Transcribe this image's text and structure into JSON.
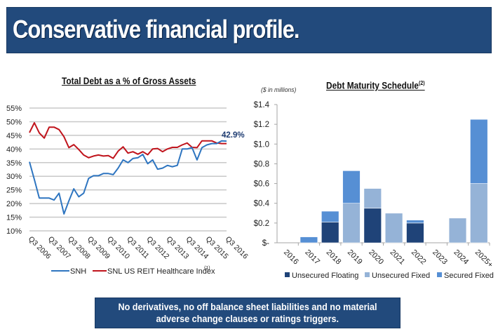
{
  "header": {
    "title": "Conservative financial profile."
  },
  "footer": {
    "line1": "No derivatives, no off balance sheet liabilities and no material",
    "line2": "adverse change clauses or ratings triggers."
  },
  "colors": {
    "brand": "#224a7c",
    "snh": "#2e75c0",
    "index": "#c0141c",
    "floating": "#1f4378",
    "unsecured_fixed": "#95b3d7",
    "secured_fixed": "#568fd4"
  },
  "chart_data": [
    {
      "type": "line",
      "title": "Total Debt as a % of Gross Assets",
      "xlabel": "",
      "ylabel": "",
      "ylim": [
        10,
        55
      ],
      "yticks": [
        "55%",
        "50%",
        "45%",
        "40%",
        "35%",
        "30%",
        "25%",
        "20%",
        "15%",
        "10%"
      ],
      "ytick_values": [
        55,
        50,
        45,
        40,
        35,
        30,
        25,
        20,
        15,
        10
      ],
      "xtick_labels": [
        "Q3 2006",
        "Q3 2007",
        "Q3 2008",
        "Q3 2009",
        "Q3 2010",
        "Q3 2011",
        "Q3 2012",
        "Q3 2013",
        "Q3 2014",
        "Q3 2015",
        "Q3 2016"
      ],
      "grid": true,
      "legend": "bottom",
      "annotation": "42.9%",
      "series": [
        {
          "name": "SNH",
          "values": [
            35.3,
            28.8,
            22.0,
            22.0,
            22.0,
            21.3,
            23.8,
            16.2,
            21.0,
            25.4,
            22.5,
            23.8,
            29.2,
            30.2,
            30.2,
            31.0,
            31.0,
            30.6,
            33.0,
            36.0,
            35.0,
            36.5,
            36.8,
            38.0,
            34.6,
            36.0,
            32.6,
            33.0,
            34.0,
            33.5,
            34.0,
            40.0,
            40.0,
            40.5,
            36.0,
            40.5,
            41.5,
            42.0,
            42.0,
            43.0,
            42.9
          ]
        },
        {
          "name": "SNL US REIT Healthcare Index",
          "footnote": "(1)",
          "values": [
            46.0,
            49.6,
            45.9,
            44.0,
            48.0,
            48.0,
            47.1,
            44.5,
            40.5,
            41.6,
            39.8,
            37.8,
            36.8,
            37.4,
            37.8,
            37.4,
            37.6,
            36.6,
            39.2,
            40.8,
            38.5,
            39.0,
            38.1,
            39.0,
            37.9,
            40.0,
            40.2,
            39.0,
            40.0,
            40.6,
            40.6,
            41.5,
            42.2,
            40.6,
            40.5,
            43.0,
            43.0,
            43.0,
            42.2,
            42.0,
            42.0
          ]
        }
      ]
    },
    {
      "type": "bar",
      "stacked": true,
      "title": "Debt Maturity Schedule",
      "title_footnote": "(2)",
      "units_note": "($ in millions)",
      "ylim": [
        0,
        1.4
      ],
      "yticks": [
        "$1.4",
        "$1.2",
        "$1.0",
        "$0.8",
        "$0.6",
        "$0.4",
        "$0.2",
        "$-"
      ],
      "ytick_values": [
        1.4,
        1.2,
        1.0,
        0.8,
        0.6,
        0.4,
        0.2,
        0
      ],
      "categories": [
        "2016",
        "2017",
        "2018",
        "2019",
        "2020",
        "2021",
        "2022",
        "2023",
        "2024",
        "2025+"
      ],
      "legend": "bottom",
      "series": [
        {
          "name": "Unsecured Floating",
          "values": [
            0,
            0,
            0.21,
            0,
            0.35,
            0,
            0.2,
            0,
            0,
            0
          ]
        },
        {
          "name": "Unsecured Fixed",
          "values": [
            0,
            0,
            0,
            0.4,
            0.2,
            0.3,
            0,
            0,
            0.25,
            0.6
          ]
        },
        {
          "name": "Secured Fixed",
          "values": [
            0,
            0.06,
            0.11,
            0.33,
            0,
            0,
            0.03,
            0,
            0,
            0.65
          ]
        }
      ]
    }
  ]
}
